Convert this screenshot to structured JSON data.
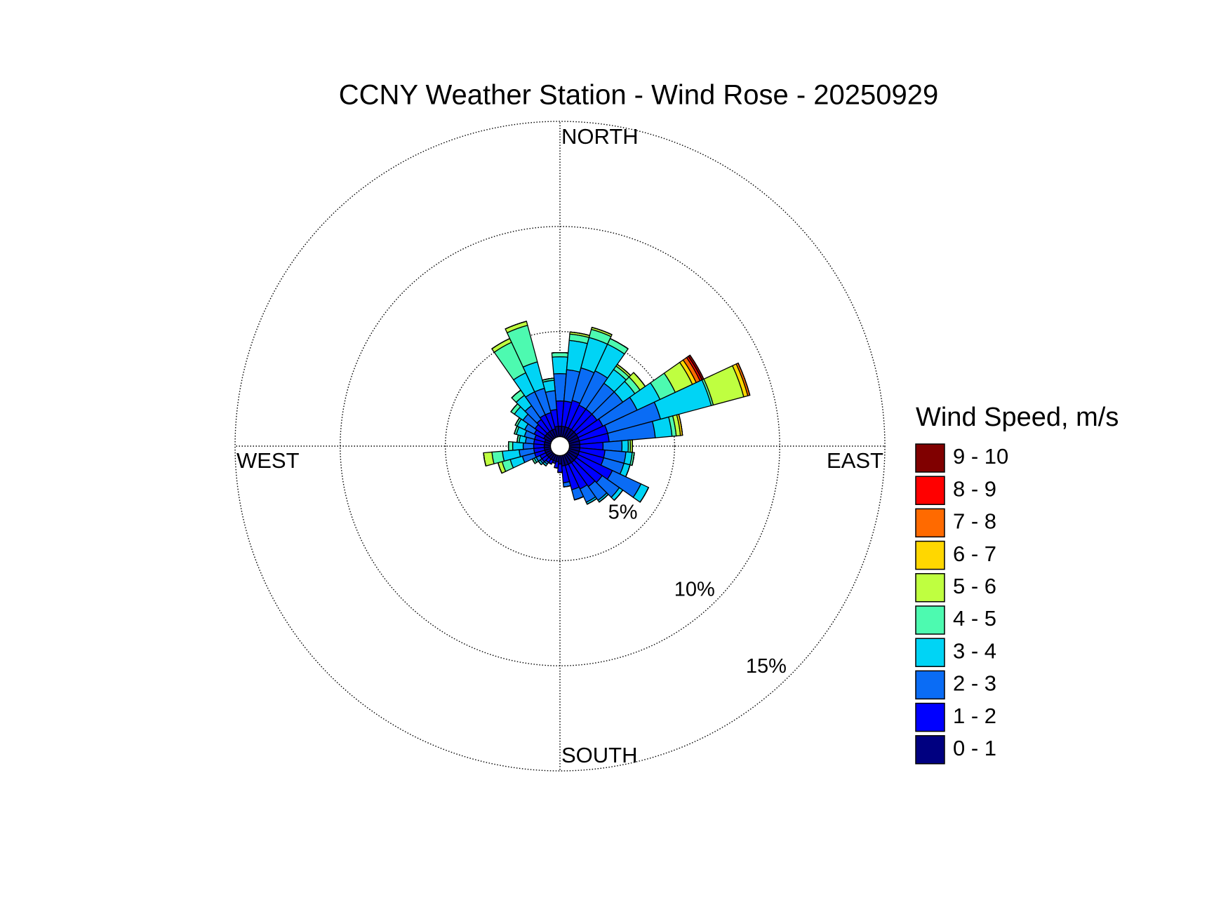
{
  "chart_data": {
    "type": "windrose",
    "title": "CCNY Weather Station - Wind Rose - 20250929",
    "direction_labels": {
      "north": "NORTH",
      "east": "EAST",
      "south": "SOUTH",
      "west": "WEST"
    },
    "legend_title": "Wind Speed, m/s",
    "x": [
      0,
      10,
      20,
      30,
      40,
      50,
      60,
      70,
      80,
      90,
      100,
      110,
      120,
      130,
      140,
      150,
      160,
      170,
      180,
      190,
      200,
      210,
      220,
      230,
      240,
      250,
      260,
      270,
      280,
      290,
      300,
      310,
      320,
      330,
      340,
      350
    ],
    "rlim": [
      0,
      15
    ],
    "rticks": [
      {
        "value": 5,
        "label": "5%"
      },
      {
        "value": 10,
        "label": "10%"
      },
      {
        "value": 15,
        "label": "15%"
      }
    ],
    "grid": true,
    "series": [
      {
        "name": "0 - 1",
        "color": "#000080",
        "values": [
          0.5,
          0.5,
          0.5,
          0.5,
          0.5,
          0.5,
          0.5,
          0.5,
          0.5,
          0.5,
          0.5,
          0.5,
          0.5,
          0.5,
          0.5,
          0.5,
          0.5,
          0.5,
          0.4,
          0.3,
          0.3,
          0.3,
          0.3,
          0.3,
          0.3,
          0.3,
          0.3,
          0.3,
          0.3,
          0.3,
          0.4,
          0.4,
          0.4,
          0.4,
          0.4,
          0.5
        ]
      },
      {
        "name": "1 - 2",
        "color": "#0000ff",
        "values": [
          1.2,
          1.2,
          1.3,
          1.2,
          1.2,
          1.2,
          1.3,
          1.4,
          1.4,
          1.1,
          1.2,
          1.2,
          1.8,
          1.5,
          1.4,
          1.3,
          1.2,
          0.8,
          0.4,
          0.3,
          0.1,
          0.2,
          0.2,
          0.3,
          0.3,
          0.5,
          0.5,
          0.5,
          0.5,
          0.5,
          0.5,
          0.6,
          0.7,
          0.8,
          0.8,
          0.8
        ]
      },
      {
        "name": "2 - 3",
        "color": "#0a6cf5",
        "values": [
          1.3,
          1.5,
          1.6,
          1.8,
          1.5,
          1.5,
          1.8,
          2.6,
          2.2,
          0.9,
          1.0,
          1.0,
          1.5,
          1.0,
          0.8,
          0.7,
          0.5,
          0.2,
          0,
          0,
          0,
          0,
          0.1,
          0.1,
          0.2,
          0.6,
          0.7,
          0.5,
          0.4,
          0.5,
          0.5,
          0.7,
          0.8,
          1.2,
          1.2,
          0.9
        ]
      },
      {
        "name": "3 - 4",
        "color": "#00d4f5",
        "values": [
          0.8,
          1.4,
          1.5,
          1.4,
          0.8,
          0.7,
          1.2,
          2.5,
          0.8,
          0.3,
          0.3,
          0.3,
          0.4,
          0.2,
          0.1,
          0.1,
          0,
          0,
          0,
          0,
          0,
          0,
          0.1,
          0.1,
          0.1,
          0.6,
          0.8,
          0.5,
          0.3,
          0.4,
          0.4,
          0.5,
          0.6,
          1.0,
          1.3,
          0.5
        ]
      },
      {
        "name": "4 - 5",
        "color": "#4dfab0",
        "values": [
          0.2,
          0.3,
          0.4,
          0.3,
          0.2,
          0.3,
          0.8,
          0.1,
          0.2,
          0.1,
          0.1,
          0,
          0,
          0,
          0,
          0,
          0,
          0,
          0,
          0,
          0,
          0,
          0,
          0,
          0.1,
          0.4,
          0.5,
          0.2,
          0.1,
          0.1,
          0.1,
          0.2,
          0.3,
          1.6,
          1.8,
          0.1
        ]
      },
      {
        "name": "5 - 6",
        "color": "#bfff40",
        "values": [
          0,
          0.1,
          0.1,
          0,
          0.1,
          0.3,
          0.9,
          1.5,
          0.2,
          0.1,
          0,
          0,
          0,
          0,
          0,
          0,
          0,
          0,
          0,
          0,
          0,
          0,
          0,
          0,
          0,
          0.2,
          0.4,
          0,
          0,
          0,
          0,
          0,
          0,
          0.2,
          0.2,
          0
        ]
      },
      {
        "name": "6 - 7",
        "color": "#ffd700",
        "values": [
          0,
          0,
          0,
          0,
          0,
          0,
          0.2,
          0.2,
          0.1,
          0,
          0,
          0,
          0,
          0,
          0,
          0,
          0,
          0,
          0,
          0,
          0,
          0,
          0,
          0,
          0,
          0,
          0,
          0,
          0,
          0,
          0,
          0,
          0,
          0,
          0,
          0
        ]
      },
      {
        "name": "7 - 8",
        "color": "#ff6a00",
        "values": [
          0,
          0,
          0,
          0,
          0,
          0,
          0.2,
          0.1,
          0,
          0,
          0,
          0,
          0,
          0,
          0,
          0,
          0,
          0,
          0,
          0,
          0,
          0,
          0,
          0,
          0,
          0,
          0,
          0,
          0,
          0,
          0,
          0,
          0,
          0,
          0,
          0
        ]
      },
      {
        "name": "8 - 9",
        "color": "#ff0000",
        "values": [
          0,
          0,
          0,
          0,
          0,
          0,
          0.1,
          0,
          0,
          0,
          0,
          0,
          0,
          0,
          0,
          0,
          0,
          0,
          0,
          0,
          0,
          0,
          0,
          0,
          0,
          0,
          0,
          0,
          0,
          0,
          0,
          0,
          0,
          0,
          0,
          0
        ]
      },
      {
        "name": "9 - 10",
        "color": "#800000",
        "values": [
          0,
          0,
          0,
          0,
          0,
          0,
          0.1,
          0,
          0,
          0,
          0,
          0,
          0,
          0,
          0,
          0,
          0,
          0,
          0,
          0,
          0,
          0,
          0,
          0,
          0,
          0,
          0,
          0,
          0,
          0,
          0,
          0,
          0,
          0,
          0,
          0
        ]
      }
    ]
  }
}
